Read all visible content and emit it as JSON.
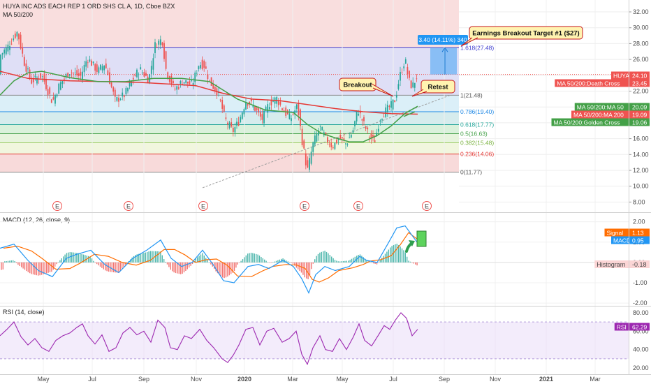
{
  "header": {
    "symbol_title": "HUYA INC ADS EACH REP 1 ORD SHS CL A, 1D, Cboe BZX",
    "indicator": "MA 50/200"
  },
  "chart_data": [
    {
      "type": "candlestick",
      "ylim": [
        6.8,
        33.5
      ],
      "y_ticks": [
        "32.00",
        "30.00",
        "28.00",
        "26.00",
        "24.00",
        "22.00",
        "20.00",
        "18.00",
        "16.00",
        "14.00",
        "12.00",
        "10.00",
        "8.00"
      ],
      "fib_levels": [
        {
          "label": "1.618(27.48)",
          "value": 27.48
        },
        {
          "label": "1(21.48)",
          "value": 21.48
        },
        {
          "label": "0.786(19.40)",
          "value": 19.4
        },
        {
          "label": "0.618(17.77)",
          "value": 17.77
        },
        {
          "label": "0.5(16.63)",
          "value": 16.63
        },
        {
          "label": "0.382(15.48)",
          "value": 15.48
        },
        {
          "label": "0.236(14.06)",
          "value": 14.06
        },
        {
          "label": "0(11.77)",
          "value": 11.77
        }
      ],
      "price_tags": [
        {
          "label": "HUYA",
          "value": "24.10",
          "color": "#ef5350"
        },
        {
          "label": "MA 50/200:Death Cross",
          "value": "23.45",
          "color": "#ef5350"
        },
        {
          "label": "MA 50/200:MA 50",
          "value": "20.09",
          "color": "#43a047"
        },
        {
          "label": "MA 50/200:MA 200",
          "value": "19.09",
          "color": "#ef5350"
        },
        {
          "label": "MA 50/200:Golden Cross",
          "value": "19.06",
          "color": "#43a047"
        }
      ],
      "annotations": {
        "target": "Earnings Breakout Target #1 ($27)",
        "measure": "3.40 (14.11%) 340",
        "breakout": "Breakout",
        "retest": "Retest",
        "earnings_marker": "E"
      }
    },
    {
      "type": "line",
      "name": "MACD (12, 26, close, 9)",
      "ylim": [
        -2.1,
        2.4
      ],
      "y_ticks": [
        "2.00",
        "1.00",
        "0.00",
        "-1.00",
        "-2.00"
      ],
      "tags": [
        {
          "label": "Signal",
          "value": "1.13",
          "color": "#ff6d00"
        },
        {
          "label": "MACD",
          "value": "0.95",
          "color": "#2196f3"
        },
        {
          "label": "Histogram",
          "value": "-0.18",
          "color": "#ef5350"
        }
      ]
    },
    {
      "type": "line",
      "name": "RSI (14, close)",
      "ylim": [
        14,
        86
      ],
      "y_ticks": [
        "80.00",
        "60.00",
        "40.00",
        "20.00"
      ],
      "tags": [
        {
          "label": "RSI",
          "value": "62.29",
          "color": "#9c27b0"
        }
      ]
    }
  ],
  "x_axis": {
    "months": [
      "May",
      "Jul",
      "Sep",
      "Nov",
      "2020",
      "Mar",
      "May",
      "Jul",
      "Sep",
      "Nov",
      "2021",
      "Mar"
    ]
  },
  "colors": {
    "up": "#26a69a",
    "down": "#ef5350",
    "ma50": "#43a047",
    "ma200": "#e53935",
    "macd": "#2196f3",
    "signal": "#ff6d00",
    "rsi": "#9c27b0"
  }
}
